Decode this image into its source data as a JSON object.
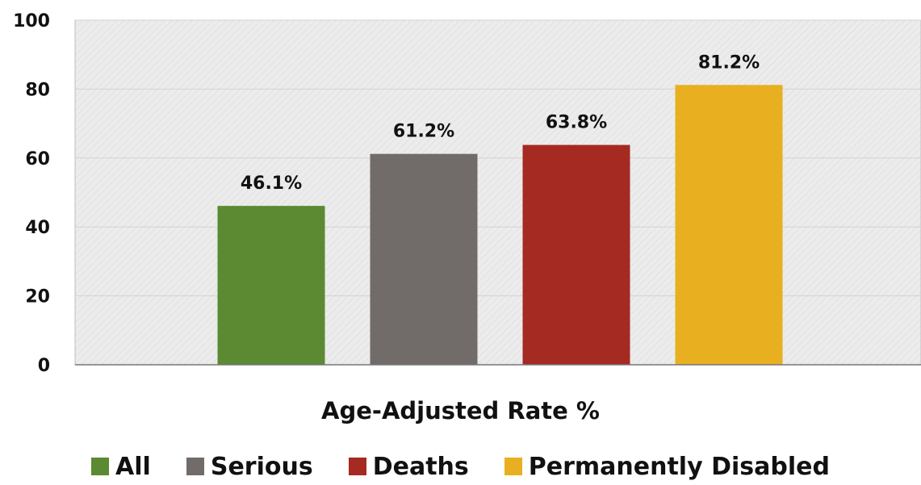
{
  "chart_data": {
    "type": "bar",
    "categories": [
      "All",
      "Serious",
      "Deaths",
      "Permanently Disabled"
    ],
    "values": [
      46.1,
      61.2,
      63.8,
      81.2
    ],
    "data_labels": [
      "46.1%",
      "61.2%",
      "63.8%",
      "81.2%"
    ],
    "colors": [
      "#5b8a32",
      "#716c6a",
      "#a52a22",
      "#e8b020"
    ],
    "title": "",
    "xlabel": "Age-Adjusted Rate %",
    "ylabel": "",
    "ylim": [
      0,
      100
    ],
    "yticks": [
      0,
      20,
      40,
      60,
      80,
      100
    ],
    "ytick_labels": [
      "0",
      "20",
      "40",
      "60",
      "80",
      "100"
    ],
    "grid": true,
    "plot_background": "#ececec",
    "legend_position": "bottom"
  }
}
